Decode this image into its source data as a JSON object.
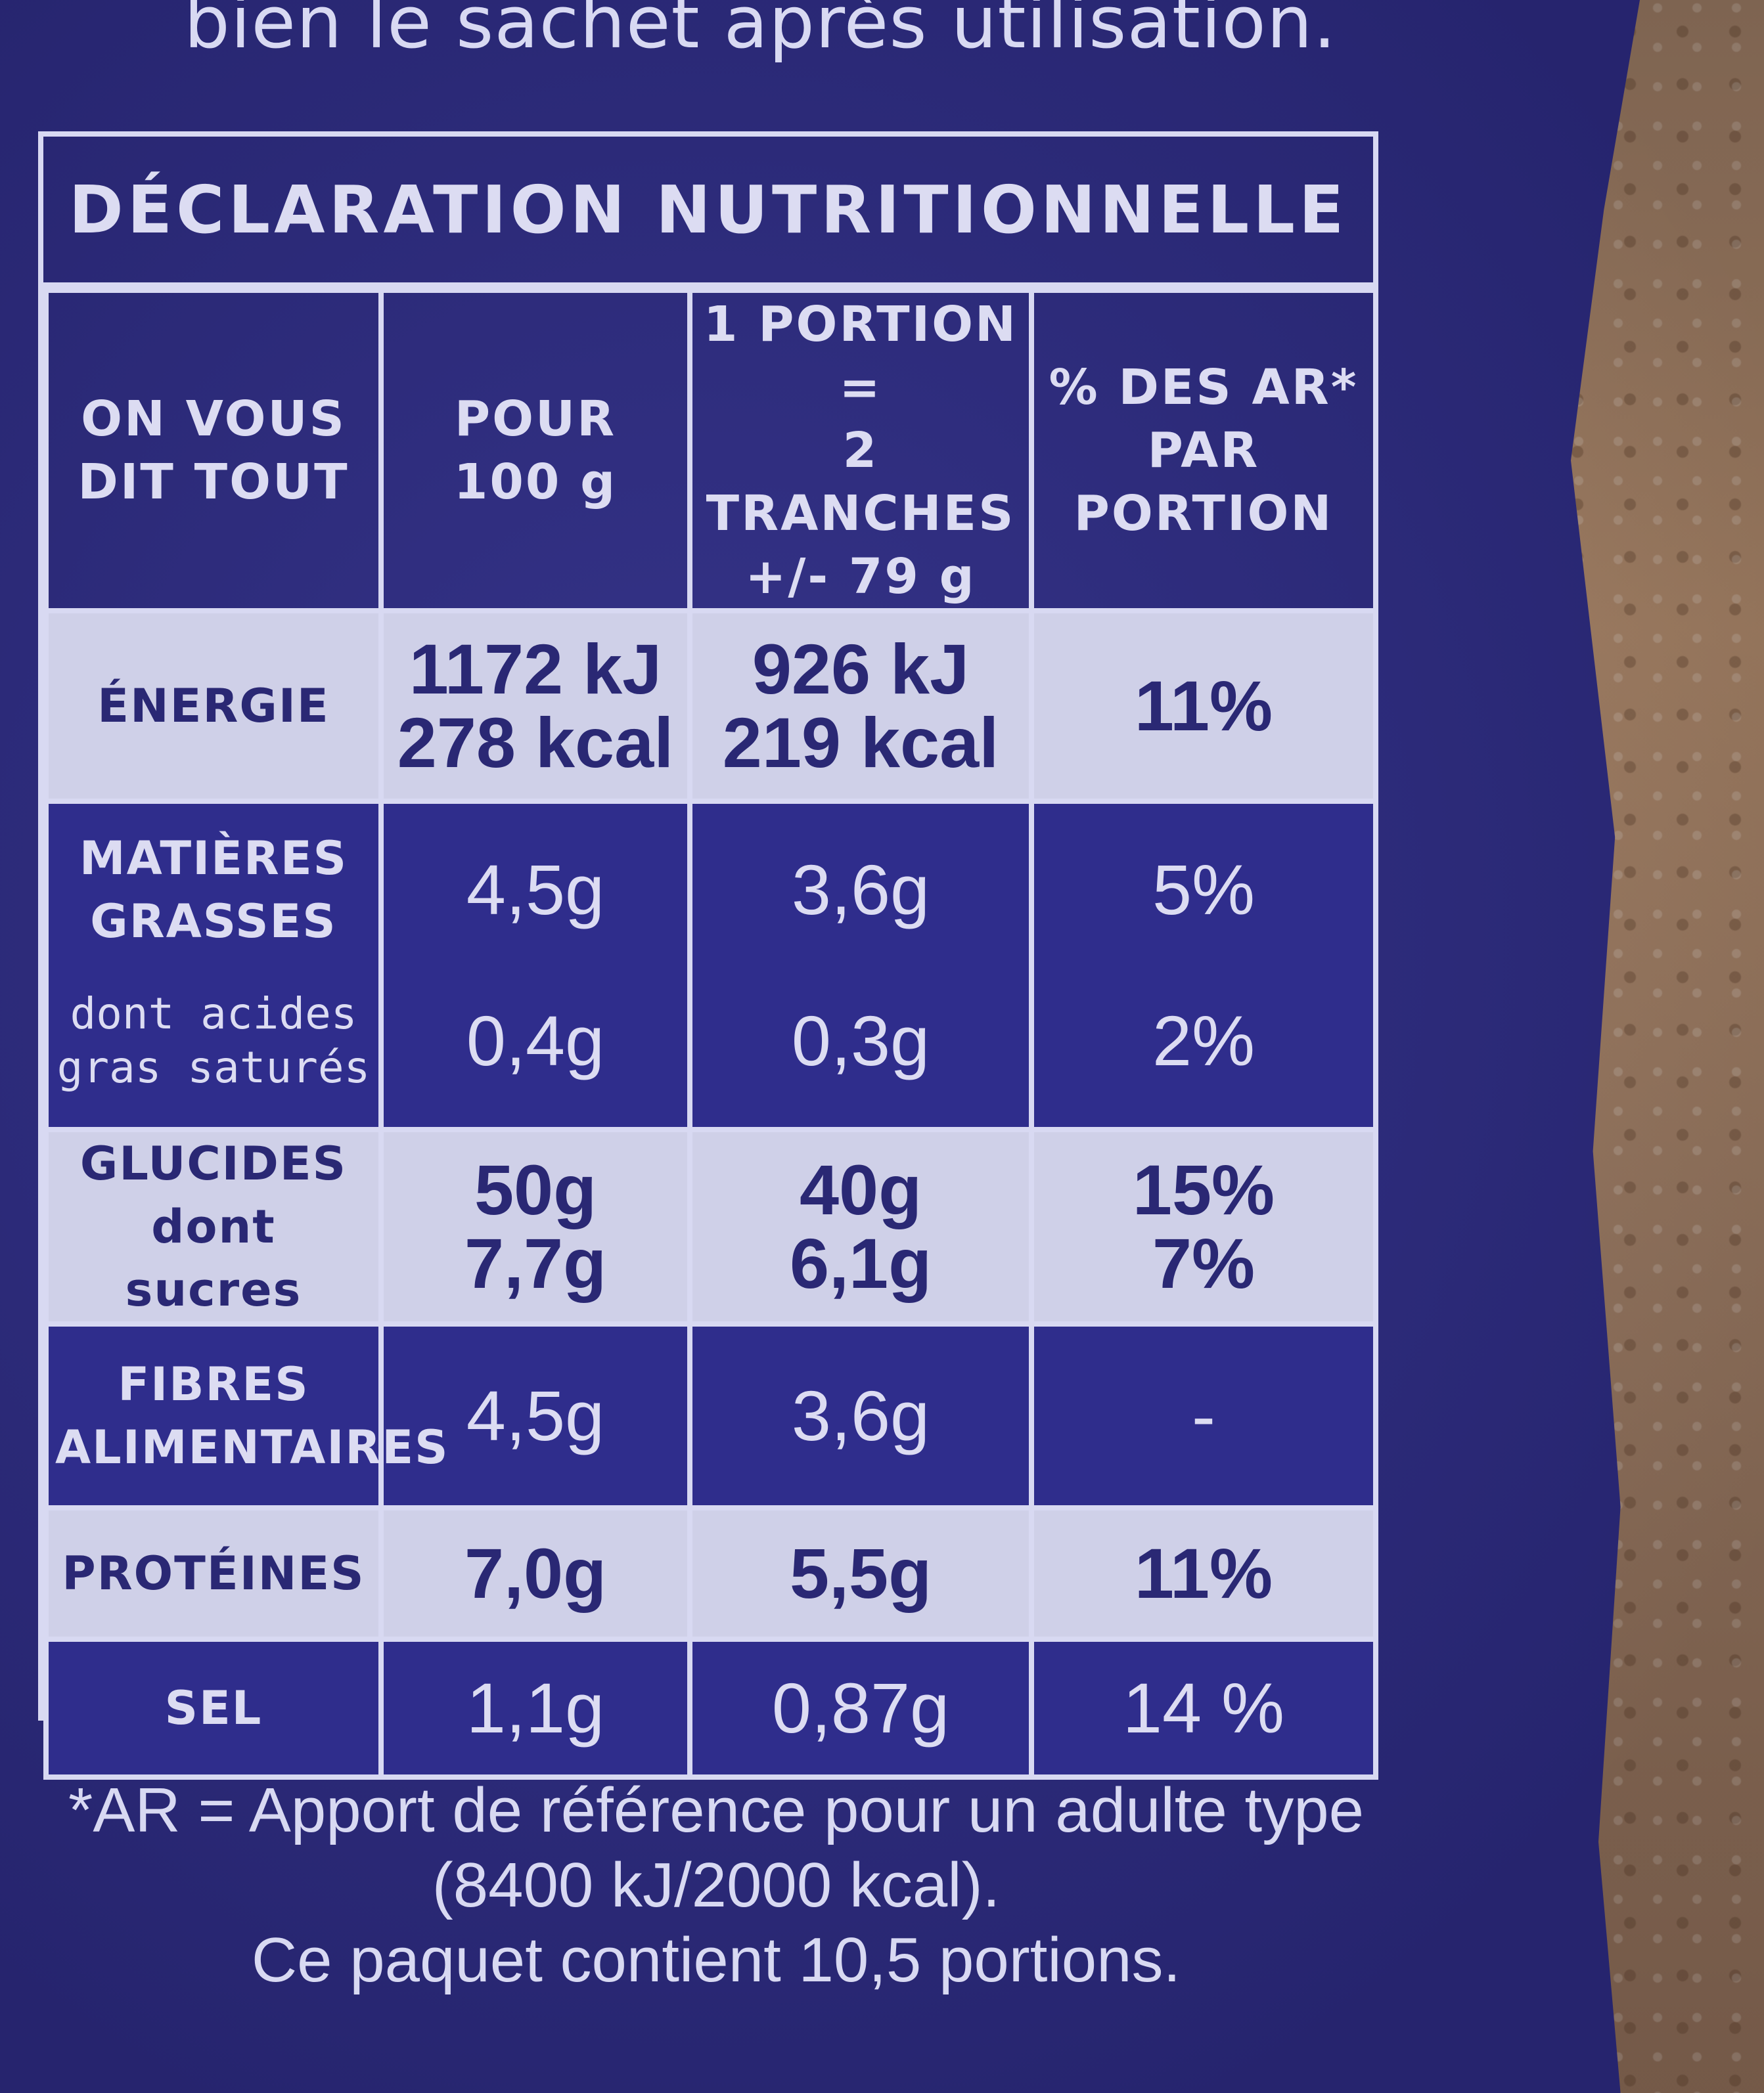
{
  "header_text": "bien le sachet après utilisation.",
  "panel": {
    "title": "DÉCLARATION NUTRITIONNELLE",
    "columns": {
      "c1": [
        "ON VOUS",
        "DIT TOUT"
      ],
      "c2": [
        "POUR",
        "100 g"
      ],
      "c3": [
        "1 PORTION =",
        "2 TRANCHES",
        "+/- 79 g"
      ],
      "c4": [
        "% DES AR*",
        "PAR",
        "PORTION"
      ]
    },
    "rows": {
      "energy": {
        "label": "ÉNERGIE",
        "per100": [
          "1172 kJ",
          "278 kcal"
        ],
        "portion": [
          "926 kJ",
          "219 kcal"
        ],
        "ar": "11%"
      },
      "fat": {
        "label": [
          "MATIÈRES",
          "GRASSES"
        ],
        "per100": "4,5g",
        "portion": "3,6g",
        "ar": "5%",
        "sub_label": [
          "dont acides",
          "gras saturés"
        ],
        "sub_per100": "0,4g",
        "sub_portion": "0,3g",
        "sub_ar": "2%"
      },
      "carbs": {
        "label": "GLUCIDES",
        "per100": "50g",
        "portion": "40g",
        "ar": "15%",
        "sub_label": "dont sucres",
        "sub_per100": "7,7g",
        "sub_portion": "6,1g",
        "sub_ar": "7%"
      },
      "fiber": {
        "label": [
          "FIBRES",
          "ALIMENTAIRES"
        ],
        "per100": "4,5g",
        "portion": "3,6g",
        "ar": "-"
      },
      "protein": {
        "label": "PROTÉINES",
        "per100": "7,0g",
        "portion": "5,5g",
        "ar": "11%"
      },
      "salt": {
        "label": "SEL",
        "per100": "1,1g",
        "portion": "0,87g",
        "ar": "14 %"
      }
    }
  },
  "footer": {
    "line1": "*AR = Apport de référence pour un adulte type",
    "line2": "(8400 kJ/2000 kcal).",
    "line3": "Ce paquet contient 10,5 portions."
  },
  "colors": {
    "bag_blue": "#2e2c86",
    "light_row": "#cfd0e8",
    "text_light": "#dcdcf2",
    "text_dark": "#2a2874"
  }
}
